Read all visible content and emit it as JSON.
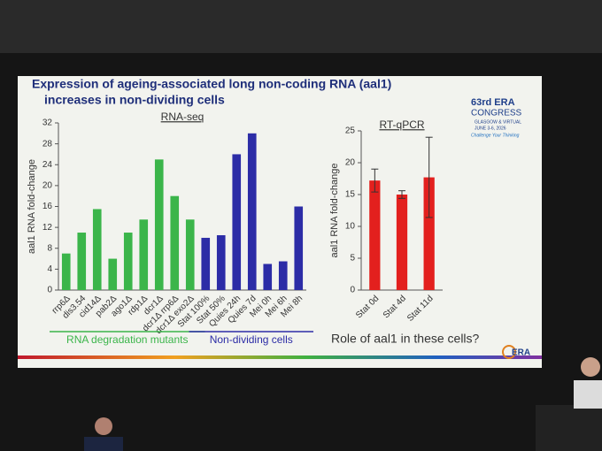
{
  "slide": {
    "title": [
      "Expression of ageing-associated long non-coding RNA (aal1)",
      "increases in non-dividing cells"
    ],
    "question": "Role of aal1 in these cells?",
    "logo": {
      "edition": "63rd ERA",
      "name": "CONGRESS",
      "place": "GLASGOW & VIRTUAL",
      "date": "JUNE 3-6, 2026",
      "motto": "Challenge Your Thinking",
      "mark": "ERA"
    }
  },
  "chart_data": [
    {
      "type": "bar",
      "title": "RNA-seq",
      "ylabel": "aal1 RNA fold-change",
      "categories": [
        "rrp6Δ",
        "dis3.54",
        "cid14Δ",
        "pab2Δ",
        "ago1Δ",
        "rdp1Δ",
        "dcr1Δ",
        "dcr1Δ rrp6Δ",
        "dcr1Δ exo2Δ",
        "Stat 100%",
        "Stat 50%",
        "Quies 24h",
        "Quies 7d",
        "Mei 0h",
        "Mei 6h",
        "Mei 8h"
      ],
      "values": [
        7,
        11,
        15.5,
        6,
        11,
        13.5,
        25,
        18,
        13.5,
        10,
        10.5,
        26,
        30,
        5,
        5.5,
        16
      ],
      "colors": [
        "#3bb54a",
        "#3bb54a",
        "#3bb54a",
        "#3bb54a",
        "#3bb54a",
        "#3bb54a",
        "#3bb54a",
        "#3bb54a",
        "#3bb54a",
        "#2c2ca6",
        "#2c2ca6",
        "#2c2ca6",
        "#2c2ca6",
        "#2c2ca6",
        "#2c2ca6",
        "#2c2ca6"
      ],
      "ylim": [
        0,
        32
      ],
      "yticks": [
        0,
        4,
        8,
        12,
        16,
        20,
        24,
        28,
        32
      ],
      "annotations": [
        {
          "text": "RNA degradation mutants",
          "color": "#3bb54a"
        },
        {
          "text": "Non-dividing cells",
          "color": "#2c2ca6"
        }
      ]
    },
    {
      "type": "bar",
      "title": "RT-qPCR",
      "ylabel": "aal1 RNA fold-change",
      "categories": [
        "Stat 0d",
        "Stat 4d",
        "Stat 11d"
      ],
      "values": [
        17.2,
        15,
        17.7
      ],
      "errors": [
        1.8,
        0.6,
        6.3
      ],
      "colors": [
        "#e3201e",
        "#e3201e",
        "#e3201e"
      ],
      "ylim": [
        0,
        25
      ],
      "yticks": [
        0,
        5,
        10,
        15,
        20,
        25
      ]
    }
  ]
}
